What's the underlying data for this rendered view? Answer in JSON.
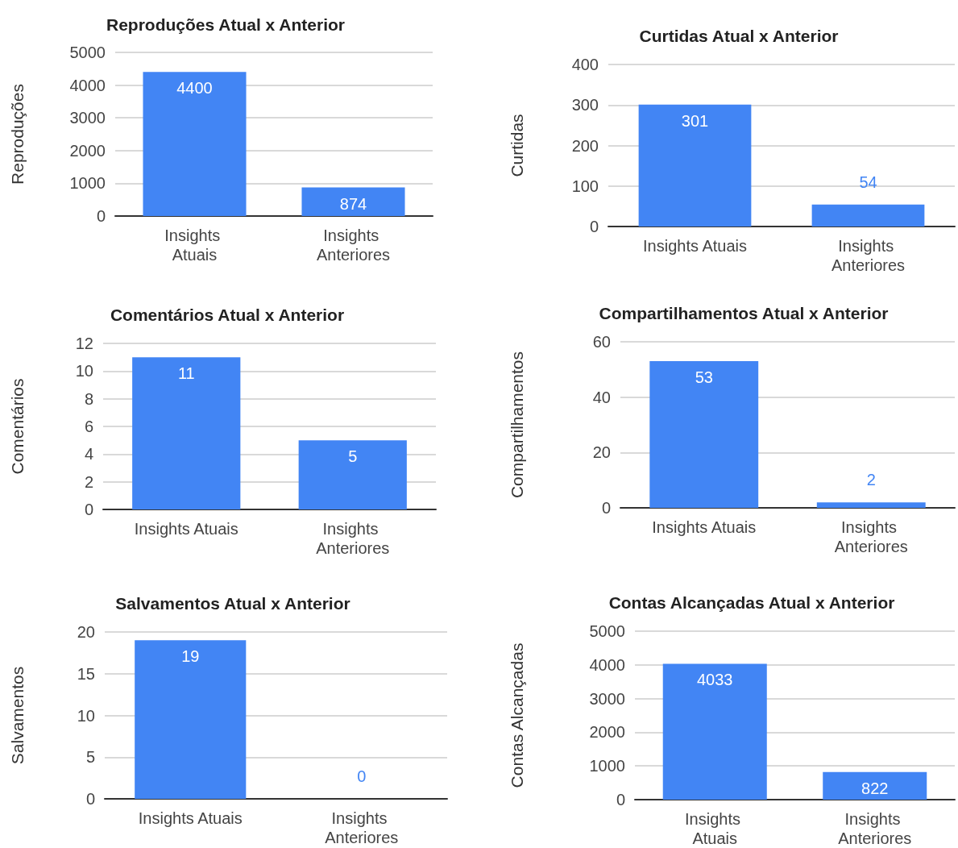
{
  "chart_data": [
    {
      "type": "bar",
      "title": "Reproduções Atual x Anterior",
      "ylabel": "Reproduções",
      "categories": [
        "Insights Atuais",
        "Insights Anteriores"
      ],
      "values": [
        4400,
        874
      ],
      "color": "#4285f4",
      "ylim": [
        0,
        5000
      ],
      "yticks": [
        0,
        1000,
        2000,
        3000,
        4000,
        5000
      ],
      "grid": "y",
      "data_labels": true
    },
    {
      "type": "bar",
      "title": "Curtidas Atual x Anterior",
      "ylabel": "Curtidas",
      "categories": [
        "Insights Atuais",
        "Insights Anteriores"
      ],
      "values": [
        301,
        54
      ],
      "color": "#4285f4",
      "ylim": [
        0,
        400
      ],
      "yticks": [
        0,
        100,
        200,
        300,
        400
      ],
      "grid": "y",
      "data_labels": true
    },
    {
      "type": "bar",
      "title": "Comentários Atual x Anterior",
      "ylabel": "Comentários",
      "categories": [
        "Insights Atuais",
        "Insights Anteriores"
      ],
      "values": [
        11,
        5
      ],
      "color": "#4285f4",
      "ylim": [
        0,
        12
      ],
      "yticks": [
        0,
        2,
        4,
        6,
        8,
        10,
        12
      ],
      "grid": "y",
      "data_labels": true
    },
    {
      "type": "bar",
      "title": "Compartilhamentos Atual x Anterior",
      "ylabel": "Compartilhamentos",
      "categories": [
        "Insights Atuais",
        "Insights Anteriores"
      ],
      "values": [
        53,
        2
      ],
      "color": "#4285f4",
      "ylim": [
        0,
        60
      ],
      "yticks": [
        0,
        20,
        40,
        60
      ],
      "grid": "y",
      "data_labels": true
    },
    {
      "type": "bar",
      "title": "Salvamentos Atual x Anterior",
      "ylabel": "Salvamentos",
      "categories": [
        "Insights Atuais",
        "Insights Anteriores"
      ],
      "values": [
        19,
        0
      ],
      "color": "#4285f4",
      "ylim": [
        0,
        20
      ],
      "yticks": [
        0,
        5,
        10,
        15,
        20
      ],
      "grid": "y",
      "data_labels": true
    },
    {
      "type": "bar",
      "title": "Contas Alcançadas Atual x Anterior",
      "ylabel": "Contas Alcançadas",
      "categories": [
        "Insights Atuais",
        "Insights Anteriores"
      ],
      "values": [
        4033,
        822
      ],
      "color": "#4285f4",
      "ylim": [
        0,
        5000
      ],
      "yticks": [
        0,
        1000,
        2000,
        3000,
        4000,
        5000
      ],
      "grid": "y",
      "data_labels": true
    }
  ]
}
